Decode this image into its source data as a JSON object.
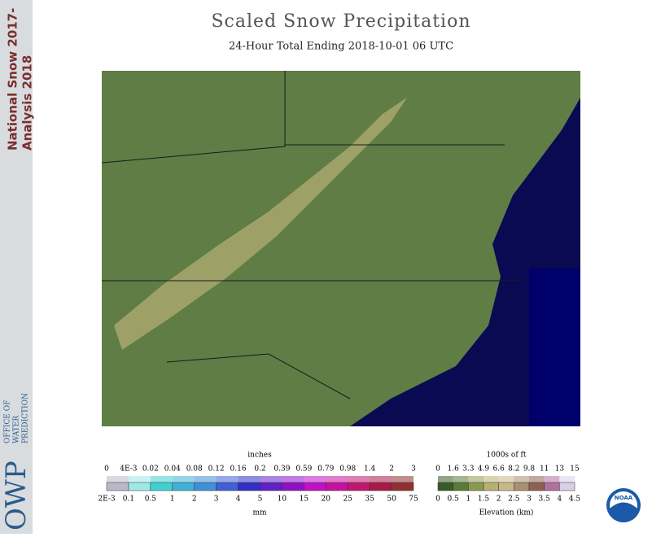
{
  "sidebar": {
    "title_line1": "National Snow 2017-",
    "title_line2": "Analysis 2018",
    "logo": "OWP",
    "office_line1": "OFFICE OF",
    "office_line2": "WATER",
    "office_line3": "PREDICTION"
  },
  "header": {
    "title": "Scaled Snow Precipitation",
    "subtitle": "24-Hour Total Ending 2018-10-01 06 UTC"
  },
  "precip_legend": {
    "top_unit": "inches",
    "top_labels": [
      "0",
      "4E-3",
      "0.02",
      "0.04",
      "0.08",
      "0.12",
      "0.16",
      "0.2",
      "0.39",
      "0.59",
      "0.79",
      "0.98",
      "1.4",
      "2",
      "3"
    ],
    "bottom_labels": [
      "2E-3",
      "0.1",
      "0.5",
      "1",
      "2",
      "3",
      "4",
      "5",
      "10",
      "15",
      "20",
      "25",
      "35",
      "50",
      "75"
    ],
    "bottom_unit": "mm"
  },
  "elevation_legend": {
    "top_unit": "1000s of ft",
    "top_labels": [
      "0",
      "1.6",
      "3.3",
      "4.9",
      "6.6",
      "8.2",
      "9.8",
      "11",
      "13",
      "15"
    ],
    "bottom_labels": [
      "0",
      "0.5",
      "1",
      "1.5",
      "2",
      "2.5",
      "3",
      "3.5",
      "4",
      "4.5"
    ],
    "bottom_unit": "Elevation (km)"
  },
  "noaa_logo": "NOAA"
}
